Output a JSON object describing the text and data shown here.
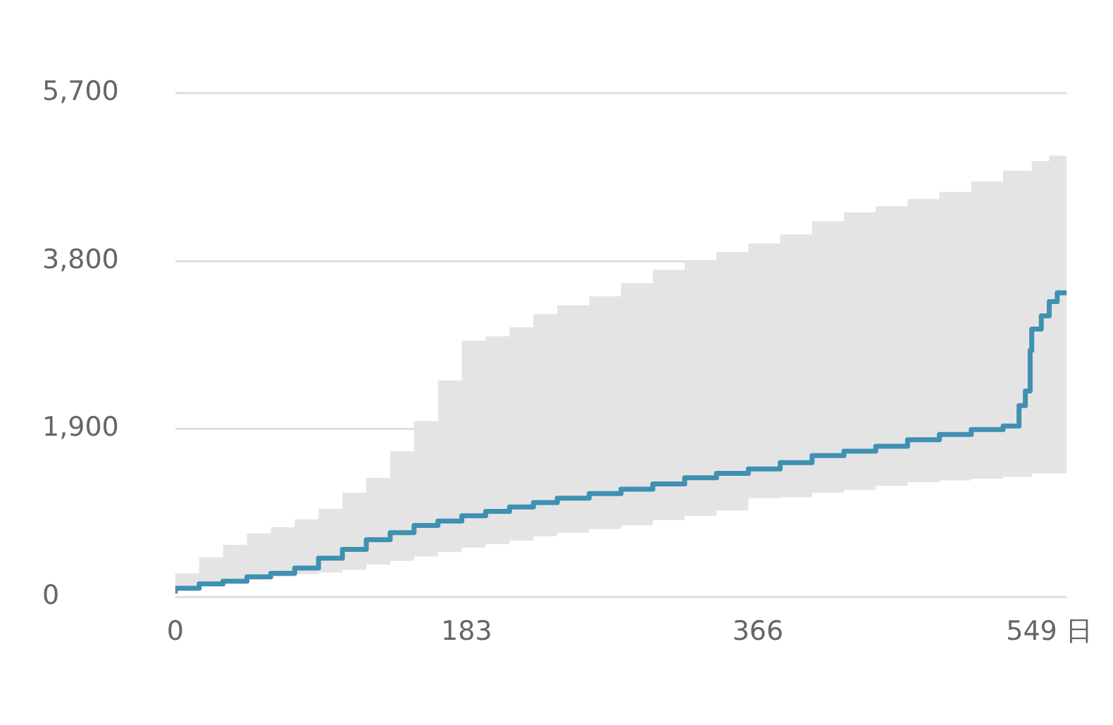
{
  "chart_data": {
    "type": "step",
    "x": [
      0,
      15,
      30,
      45,
      60,
      75,
      90,
      105,
      120,
      135,
      150,
      165,
      180,
      195,
      210,
      225,
      240,
      260,
      280,
      300,
      320,
      340,
      360,
      380,
      400,
      420,
      440,
      460,
      480,
      500,
      520,
      530,
      534,
      537,
      538,
      544,
      549,
      554,
      560
    ],
    "series": [
      {
        "color": "#3f90b1",
        "values": [
          40,
          100,
          150,
          180,
          230,
          270,
          330,
          440,
          540,
          650,
          730,
          810,
          860,
          920,
          970,
          1020,
          1070,
          1120,
          1170,
          1220,
          1280,
          1350,
          1400,
          1450,
          1520,
          1600,
          1650,
          1705,
          1780,
          1840,
          1895,
          1935,
          2165,
          2330,
          2790,
          3030,
          3180,
          3340,
          3440
        ],
        "lower": [
          20,
          80,
          120,
          170,
          200,
          230,
          260,
          280,
          310,
          370,
          410,
          460,
          510,
          560,
          600,
          640,
          690,
          730,
          770,
          810,
          870,
          920,
          980,
          1120,
          1130,
          1180,
          1210,
          1260,
          1300,
          1320,
          1340,
          1360,
          1360,
          1360,
          1360,
          1400,
          1400,
          1400,
          1400
        ],
        "upper": [
          70,
          270,
          450,
          590,
          720,
          790,
          880,
          1000,
          1180,
          1350,
          1650,
          1990,
          2450,
          2900,
          2950,
          3050,
          3200,
          3300,
          3400,
          3550,
          3700,
          3800,
          3900,
          4000,
          4100,
          4250,
          4350,
          4420,
          4500,
          4580,
          4700,
          4820,
          4820,
          4820,
          4820,
          4930,
          4930,
          4990,
          4990
        ]
      }
    ],
    "xlim": [
      0,
      560
    ],
    "xticks": [
      0,
      183,
      366,
      {
        "value": 549,
        "label": "549 日"
      }
    ],
    "ylim": [
      0,
      5700
    ],
    "yticks": [
      {
        "value": 0,
        "label": "0"
      },
      {
        "value": 1900,
        "label": "1,900"
      },
      {
        "value": 3800,
        "label": "3,800"
      },
      {
        "value": 5700,
        "label": "5,700"
      }
    ],
    "grid": "y",
    "legend": false
  }
}
